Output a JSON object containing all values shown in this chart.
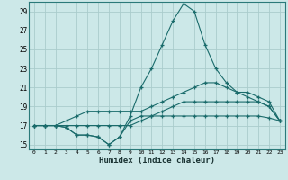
{
  "xlabel": "Humidex (Indice chaleur)",
  "background_color": "#cce8e8",
  "grid_color": "#aacccc",
  "line_color": "#1a6b6b",
  "xlim": [
    -0.5,
    23.5
  ],
  "ylim": [
    14.5,
    30.0
  ],
  "yticks": [
    15,
    17,
    19,
    21,
    23,
    25,
    27,
    29
  ],
  "xticks": [
    0,
    1,
    2,
    3,
    4,
    5,
    6,
    7,
    8,
    9,
    10,
    11,
    12,
    13,
    14,
    15,
    16,
    17,
    18,
    19,
    20,
    21,
    22,
    23
  ],
  "line1_x": [
    0,
    1,
    2,
    3,
    4,
    5,
    6,
    7,
    8,
    9,
    10,
    11,
    12,
    13,
    14,
    15,
    16,
    17,
    18,
    19,
    20,
    21,
    22,
    23
  ],
  "line1_y": [
    17.0,
    17.0,
    17.0,
    16.8,
    16.0,
    16.0,
    15.8,
    15.0,
    15.8,
    17.5,
    18.0,
    18.0,
    18.0,
    18.0,
    18.0,
    18.0,
    18.0,
    18.0,
    18.0,
    18.0,
    18.0,
    18.0,
    17.8,
    17.5
  ],
  "line2_x": [
    0,
    1,
    2,
    3,
    4,
    5,
    6,
    7,
    8,
    9,
    10,
    11,
    12,
    13,
    14,
    15,
    16,
    17,
    18,
    19,
    20,
    21,
    22,
    23
  ],
  "line2_y": [
    17.0,
    17.0,
    17.0,
    16.8,
    16.0,
    16.0,
    15.8,
    15.0,
    15.8,
    18.0,
    21.0,
    23.0,
    25.5,
    28.0,
    29.8,
    29.0,
    25.5,
    23.0,
    21.5,
    20.5,
    20.0,
    19.5,
    19.0,
    17.5
  ],
  "line3_x": [
    0,
    1,
    2,
    3,
    4,
    5,
    6,
    7,
    8,
    9,
    10,
    11,
    12,
    13,
    14,
    15,
    16,
    17,
    18,
    19,
    20,
    21,
    22,
    23
  ],
  "line3_y": [
    17.0,
    17.0,
    17.0,
    17.5,
    18.0,
    18.5,
    18.5,
    18.5,
    18.5,
    18.5,
    18.5,
    19.0,
    19.5,
    20.0,
    20.5,
    21.0,
    21.5,
    21.5,
    21.0,
    20.5,
    20.5,
    20.0,
    19.5,
    17.5
  ],
  "line4_x": [
    0,
    1,
    2,
    3,
    4,
    5,
    6,
    7,
    8,
    9,
    10,
    11,
    12,
    13,
    14,
    15,
    16,
    17,
    18,
    19,
    20,
    21,
    22,
    23
  ],
  "line4_y": [
    17.0,
    17.0,
    17.0,
    17.0,
    17.0,
    17.0,
    17.0,
    17.0,
    17.0,
    17.0,
    17.5,
    18.0,
    18.5,
    19.0,
    19.5,
    19.5,
    19.5,
    19.5,
    19.5,
    19.5,
    19.5,
    19.5,
    19.0,
    17.5
  ]
}
